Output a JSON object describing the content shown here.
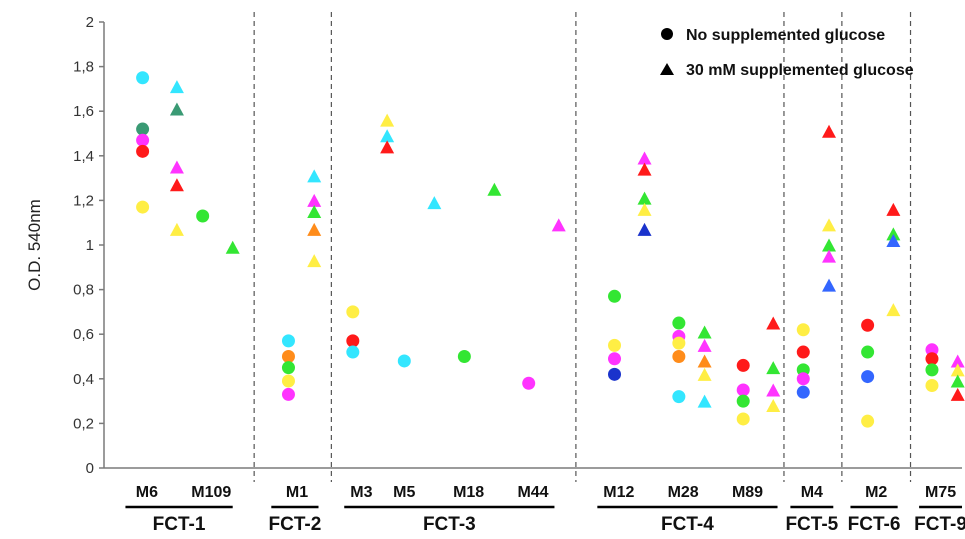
{
  "chart_data": {
    "type": "scatter",
    "ylabel": "O.D. 540nm",
    "ylim": [
      0,
      2
    ],
    "yticks": [
      {
        "value": 0,
        "label": "0"
      },
      {
        "value": 0.2,
        "label": "0,2"
      },
      {
        "value": 0.4,
        "label": "0,4"
      },
      {
        "value": 0.6,
        "label": "0,6"
      },
      {
        "value": 0.8,
        "label": "0,8"
      },
      {
        "value": 1,
        "label": "1"
      },
      {
        "value": 1.2,
        "label": "1,2"
      },
      {
        "value": 1.4,
        "label": "1,4"
      },
      {
        "value": 1.6,
        "label": "1,6"
      },
      {
        "value": 1.8,
        "label": "1,8"
      },
      {
        "value": 2,
        "label": "2"
      }
    ],
    "grid": false,
    "legend": {
      "placement": "top-right",
      "entries": [
        {
          "marker": "circle",
          "label": "No supplemented glucose"
        },
        {
          "marker": "triangle",
          "label": "30 mM supplemented glucose"
        }
      ]
    },
    "x_slots": 20,
    "strains": [
      {
        "label": "M6",
        "slot": 1
      },
      {
        "label": "M109",
        "slot": 2.5
      },
      {
        "label": "M1",
        "slot": 4.5
      },
      {
        "label": "M3",
        "slot": 6
      },
      {
        "label": "M5",
        "slot": 7
      },
      {
        "label": "M18",
        "slot": 8.5
      },
      {
        "label": "M44",
        "slot": 10
      },
      {
        "label": "M12",
        "slot": 12
      },
      {
        "label": "M28",
        "slot": 13.5
      },
      {
        "label": "M89",
        "slot": 15
      },
      {
        "label": "M4",
        "slot": 16.5
      },
      {
        "label": "M2",
        "slot": 18
      },
      {
        "label": "M75",
        "slot": 19.5
      }
    ],
    "groups": [
      {
        "label": "FCT-1",
        "slot_start": 0.5,
        "slot_end": 3.0
      },
      {
        "label": "FCT-2",
        "slot_start": 3.9,
        "slot_end": 5.0
      },
      {
        "label": "FCT-3",
        "slot_start": 5.6,
        "slot_end": 10.5
      },
      {
        "label": "FCT-4",
        "slot_start": 11.5,
        "slot_end": 15.7
      },
      {
        "label": "FCT-5",
        "slot_start": 16.0,
        "slot_end": 17.0
      },
      {
        "label": "FCT-6",
        "slot_start": 17.4,
        "slot_end": 18.5
      },
      {
        "label": "FCT-9",
        "slot_start": 19.0,
        "slot_end": 20.0
      }
    ],
    "separators": [
      3.5,
      5.3,
      11.0,
      15.85,
      17.2,
      18.8
    ],
    "series": [
      {
        "marker": "circle",
        "points": [
          {
            "x": 0.9,
            "y": 1.75,
            "color": "#33e6ff"
          },
          {
            "x": 0.9,
            "y": 1.52,
            "color": "#3a9a74"
          },
          {
            "x": 0.9,
            "y": 1.47,
            "color": "#ff33ff"
          },
          {
            "x": 0.9,
            "y": 1.42,
            "color": "#ff1a1a"
          },
          {
            "x": 0.9,
            "y": 1.17,
            "color": "#ffee44"
          },
          {
            "x": 2.3,
            "y": 1.13,
            "color": "#33e633"
          },
          {
            "x": 4.3,
            "y": 0.57,
            "color": "#33e6ff"
          },
          {
            "x": 4.3,
            "y": 0.5,
            "color": "#ff8c1a"
          },
          {
            "x": 4.3,
            "y": 0.45,
            "color": "#33e633"
          },
          {
            "x": 4.3,
            "y": 0.39,
            "color": "#ffee44"
          },
          {
            "x": 4.3,
            "y": 0.33,
            "color": "#ff33ff"
          },
          {
            "x": 5.8,
            "y": 0.7,
            "color": "#ffee44"
          },
          {
            "x": 5.8,
            "y": 0.57,
            "color": "#ff1a1a"
          },
          {
            "x": 5.8,
            "y": 0.52,
            "color": "#33e6ff"
          },
          {
            "x": 7.0,
            "y": 0.48,
            "color": "#33e6ff"
          },
          {
            "x": 8.4,
            "y": 0.5,
            "color": "#33e633"
          },
          {
            "x": 9.9,
            "y": 0.38,
            "color": "#ff33ff"
          },
          {
            "x": 11.9,
            "y": 0.77,
            "color": "#33e633"
          },
          {
            "x": 11.9,
            "y": 0.55,
            "color": "#ffee44"
          },
          {
            "x": 11.9,
            "y": 0.49,
            "color": "#ff33ff"
          },
          {
            "x": 11.9,
            "y": 0.42,
            "color": "#1a33cc"
          },
          {
            "x": 13.4,
            "y": 0.65,
            "color": "#33e633"
          },
          {
            "x": 13.4,
            "y": 0.59,
            "color": "#ff33ff"
          },
          {
            "x": 13.4,
            "y": 0.56,
            "color": "#ffee44"
          },
          {
            "x": 13.4,
            "y": 0.5,
            "color": "#ff8c1a"
          },
          {
            "x": 13.4,
            "y": 0.32,
            "color": "#33e6ff"
          },
          {
            "x": 14.9,
            "y": 0.46,
            "color": "#ff1a1a"
          },
          {
            "x": 14.9,
            "y": 0.35,
            "color": "#ff33ff"
          },
          {
            "x": 14.9,
            "y": 0.3,
            "color": "#33e633"
          },
          {
            "x": 14.9,
            "y": 0.22,
            "color": "#ffee44"
          },
          {
            "x": 16.3,
            "y": 0.62,
            "color": "#ffee44"
          },
          {
            "x": 16.3,
            "y": 0.52,
            "color": "#ff1a1a"
          },
          {
            "x": 16.3,
            "y": 0.44,
            "color": "#33e633"
          },
          {
            "x": 16.3,
            "y": 0.4,
            "color": "#ff33ff"
          },
          {
            "x": 16.3,
            "y": 0.34,
            "color": "#3366ff"
          },
          {
            "x": 17.8,
            "y": 0.64,
            "color": "#ff1a1a"
          },
          {
            "x": 17.8,
            "y": 0.52,
            "color": "#33e633"
          },
          {
            "x": 17.8,
            "y": 0.41,
            "color": "#3366ff"
          },
          {
            "x": 17.8,
            "y": 0.21,
            "color": "#ffee44"
          },
          {
            "x": 19.3,
            "y": 0.53,
            "color": "#ff33ff"
          },
          {
            "x": 19.3,
            "y": 0.49,
            "color": "#ff1a1a"
          },
          {
            "x": 19.3,
            "y": 0.44,
            "color": "#33e633"
          },
          {
            "x": 19.3,
            "y": 0.37,
            "color": "#ffee44"
          }
        ]
      },
      {
        "marker": "triangle",
        "points": [
          {
            "x": 1.7,
            "y": 1.71,
            "color": "#33e6ff"
          },
          {
            "x": 1.7,
            "y": 1.61,
            "color": "#3a9a74"
          },
          {
            "x": 1.7,
            "y": 1.35,
            "color": "#ff33ff"
          },
          {
            "x": 1.7,
            "y": 1.27,
            "color": "#ff1a1a"
          },
          {
            "x": 1.7,
            "y": 1.07,
            "color": "#ffee44"
          },
          {
            "x": 3.0,
            "y": 0.99,
            "color": "#33e633"
          },
          {
            "x": 4.9,
            "y": 1.31,
            "color": "#33e6ff"
          },
          {
            "x": 4.9,
            "y": 1.2,
            "color": "#ff33ff"
          },
          {
            "x": 4.9,
            "y": 1.15,
            "color": "#33e633"
          },
          {
            "x": 4.9,
            "y": 1.07,
            "color": "#ff8c1a"
          },
          {
            "x": 4.9,
            "y": 0.93,
            "color": "#ffee44"
          },
          {
            "x": 6.6,
            "y": 1.56,
            "color": "#ffee44"
          },
          {
            "x": 6.6,
            "y": 1.49,
            "color": "#33e6ff"
          },
          {
            "x": 6.6,
            "y": 1.44,
            "color": "#ff1a1a"
          },
          {
            "x": 7.7,
            "y": 1.19,
            "color": "#33e6ff"
          },
          {
            "x": 9.1,
            "y": 1.25,
            "color": "#33e633"
          },
          {
            "x": 10.6,
            "y": 1.09,
            "color": "#ff33ff"
          },
          {
            "x": 12.6,
            "y": 1.39,
            "color": "#ff33ff"
          },
          {
            "x": 12.6,
            "y": 1.34,
            "color": "#ff1a1a"
          },
          {
            "x": 12.6,
            "y": 1.21,
            "color": "#33e633"
          },
          {
            "x": 12.6,
            "y": 1.16,
            "color": "#ffee44"
          },
          {
            "x": 12.6,
            "y": 1.07,
            "color": "#1a33cc"
          },
          {
            "x": 14.0,
            "y": 0.61,
            "color": "#33e633"
          },
          {
            "x": 14.0,
            "y": 0.55,
            "color": "#ff33ff"
          },
          {
            "x": 14.0,
            "y": 0.48,
            "color": "#ff8c1a"
          },
          {
            "x": 14.0,
            "y": 0.42,
            "color": "#ffee44"
          },
          {
            "x": 14.0,
            "y": 0.3,
            "color": "#33e6ff"
          },
          {
            "x": 15.6,
            "y": 0.65,
            "color": "#ff1a1a"
          },
          {
            "x": 15.6,
            "y": 0.45,
            "color": "#33e633"
          },
          {
            "x": 15.6,
            "y": 0.35,
            "color": "#ff33ff"
          },
          {
            "x": 15.6,
            "y": 0.28,
            "color": "#ffee44"
          },
          {
            "x": 16.9,
            "y": 1.51,
            "color": "#ff1a1a"
          },
          {
            "x": 16.9,
            "y": 1.09,
            "color": "#ffee44"
          },
          {
            "x": 16.9,
            "y": 1.0,
            "color": "#33e633"
          },
          {
            "x": 16.9,
            "y": 0.95,
            "color": "#ff33ff"
          },
          {
            "x": 16.9,
            "y": 0.82,
            "color": "#3366ff"
          },
          {
            "x": 18.4,
            "y": 1.16,
            "color": "#ff1a1a"
          },
          {
            "x": 18.4,
            "y": 1.05,
            "color": "#33e633"
          },
          {
            "x": 18.4,
            "y": 1.02,
            "color": "#3366ff"
          },
          {
            "x": 18.4,
            "y": 0.71,
            "color": "#ffee44"
          },
          {
            "x": 19.9,
            "y": 0.48,
            "color": "#ff33ff"
          },
          {
            "x": 19.9,
            "y": 0.44,
            "color": "#ffee44"
          },
          {
            "x": 19.9,
            "y": 0.39,
            "color": "#33e633"
          },
          {
            "x": 19.9,
            "y": 0.33,
            "color": "#ff1a1a"
          }
        ]
      }
    ]
  }
}
